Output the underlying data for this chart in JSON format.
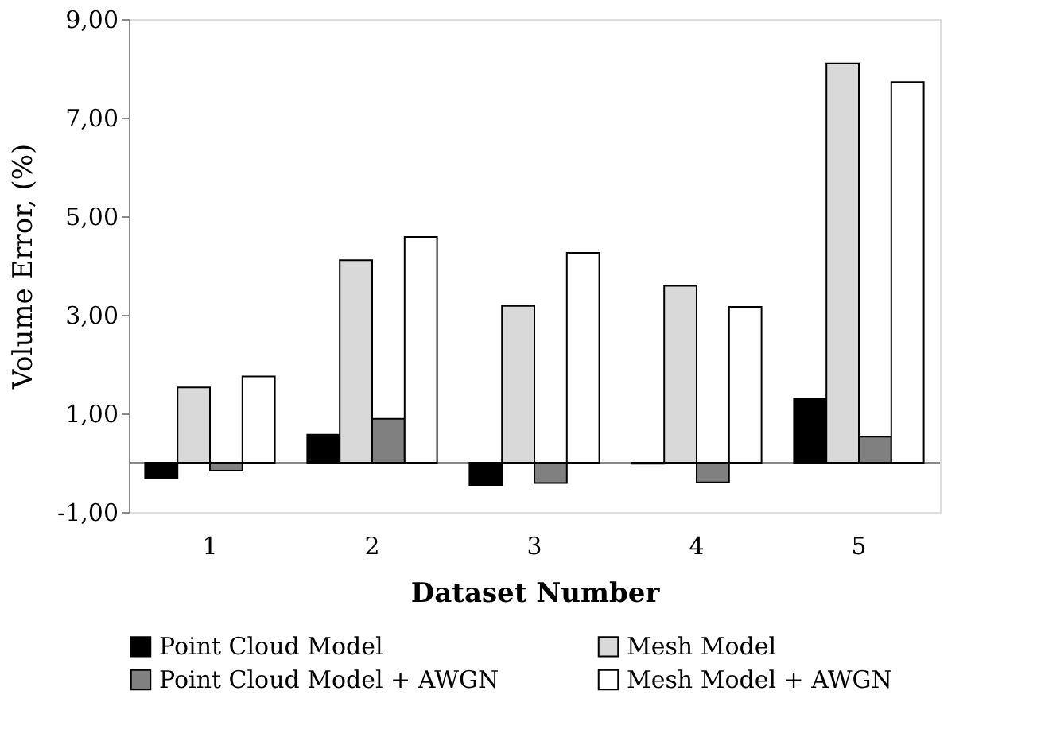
{
  "chart_data": {
    "type": "bar",
    "xlabel": "Dataset Number",
    "ylabel": "Volume Error, (%)",
    "categories": [
      "1",
      "2",
      "3",
      "4",
      "5"
    ],
    "series": [
      {
        "name": "Point Cloud Model",
        "color": "#000000",
        "values": [
          -0.32,
          0.57,
          -0.45,
          -0.02,
          1.3
        ]
      },
      {
        "name": "Mesh Model",
        "color": "#d9d9d9",
        "values": [
          1.53,
          4.11,
          3.18,
          3.59,
          8.1
        ]
      },
      {
        "name": "Point Cloud Model + AWGN",
        "color": "#808080",
        "values": [
          -0.16,
          0.89,
          -0.41,
          -0.4,
          0.53
        ]
      },
      {
        "name": "Mesh Model + AWGN",
        "color": "#ffffff",
        "values": [
          1.75,
          4.58,
          4.26,
          3.16,
          7.72
        ]
      }
    ],
    "ylim": [
      -1,
      9
    ],
    "yticks": [
      {
        "value": -1,
        "label": "-1,00"
      },
      {
        "value": 1,
        "label": "1,00"
      },
      {
        "value": 3,
        "label": "3,00"
      },
      {
        "value": 5,
        "label": "5,00"
      },
      {
        "value": 7,
        "label": "7,00"
      },
      {
        "value": 9,
        "label": "9,00"
      }
    ],
    "grid": false,
    "legend": "bottom"
  }
}
